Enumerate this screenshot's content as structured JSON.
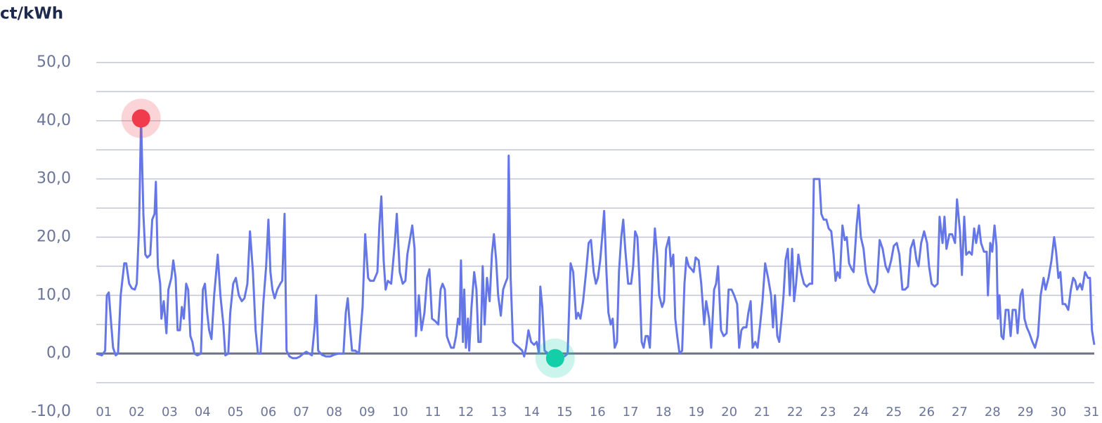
{
  "chart_data": {
    "type": "line",
    "title": "ct/kWh",
    "xlim": [
      0.77,
      31.09
    ],
    "ylim": [
      -10,
      50
    ],
    "xticks": [
      {
        "value": 1,
        "label": "01"
      },
      {
        "value": 2,
        "label": "02"
      },
      {
        "value": 3,
        "label": "03"
      },
      {
        "value": 4,
        "label": "04"
      },
      {
        "value": 5,
        "label": "05"
      },
      {
        "value": 6,
        "label": "06"
      },
      {
        "value": 7,
        "label": "07"
      },
      {
        "value": 8,
        "label": "08"
      },
      {
        "value": 9,
        "label": "09"
      },
      {
        "value": 10,
        "label": "10"
      },
      {
        "value": 11,
        "label": "11"
      },
      {
        "value": 12,
        "label": "12"
      },
      {
        "value": 13,
        "label": "13"
      },
      {
        "value": 14,
        "label": "14"
      },
      {
        "value": 15,
        "label": "15"
      },
      {
        "value": 16,
        "label": "16"
      },
      {
        "value": 17,
        "label": "17"
      },
      {
        "value": 18,
        "label": "18"
      },
      {
        "value": 19,
        "label": "19"
      },
      {
        "value": 20,
        "label": "20"
      },
      {
        "value": 21,
        "label": "21"
      },
      {
        "value": 22,
        "label": "22"
      },
      {
        "value": 23,
        "label": "23"
      },
      {
        "value": 24,
        "label": "24"
      },
      {
        "value": 25,
        "label": "25"
      },
      {
        "value": 26,
        "label": "26"
      },
      {
        "value": 27,
        "label": "27"
      },
      {
        "value": 28,
        "label": "28"
      },
      {
        "value": 29,
        "label": "29"
      },
      {
        "value": 30,
        "label": "30"
      },
      {
        "value": 31,
        "label": "31"
      }
    ],
    "yticks": [
      {
        "value": 50,
        "label": "50,0"
      },
      {
        "value": 40,
        "label": "40,0"
      },
      {
        "value": 30,
        "label": "30,0"
      },
      {
        "value": 20,
        "label": "20,0"
      },
      {
        "value": 10,
        "label": "10,0"
      },
      {
        "value": 0,
        "label": "0,0"
      },
      {
        "value": -10,
        "label": "-10,0"
      }
    ],
    "ygrid": [
      50,
      45,
      40,
      35,
      30,
      25,
      20,
      15,
      10,
      5,
      0,
      -5
    ],
    "grid": true,
    "series": [
      {
        "color": "#6577e6",
        "x": [
          0.77,
          0.94,
          1.04,
          1.09,
          1.15,
          1.21,
          1.28,
          1.36,
          1.43,
          1.51,
          1.62,
          1.68,
          1.77,
          1.85,
          1.94,
          2.0,
          2.07,
          2.13,
          2.2,
          2.26,
          2.32,
          2.41,
          2.47,
          2.54,
          2.58,
          2.64,
          2.71,
          2.75,
          2.82,
          2.9,
          2.96,
          3.05,
          3.11,
          3.18,
          3.24,
          3.31,
          3.37,
          3.43,
          3.5,
          3.56,
          3.63,
          3.69,
          3.75,
          3.84,
          3.95,
          4.01,
          4.07,
          4.14,
          4.2,
          4.27,
          4.35,
          4.46,
          4.54,
          4.63,
          4.69,
          4.78,
          4.84,
          4.93,
          5.01,
          5.1,
          5.19,
          5.27,
          5.36,
          5.44,
          5.53,
          5.61,
          5.68,
          5.76,
          5.85,
          5.93,
          6.0,
          6.06,
          6.12,
          6.19,
          6.27,
          6.36,
          6.42,
          6.49,
          6.55,
          6.64,
          6.74,
          6.85,
          6.96,
          7.06,
          7.15,
          7.24,
          7.32,
          7.41,
          7.45,
          7.51,
          7.62,
          7.75,
          7.88,
          8.0,
          8.13,
          8.28,
          8.35,
          8.41,
          8.47,
          8.54,
          8.64,
          8.75,
          8.86,
          8.94,
          9.03,
          9.09,
          9.2,
          9.31,
          9.37,
          9.43,
          9.5,
          9.56,
          9.63,
          9.73,
          9.84,
          9.9,
          9.99,
          10.08,
          10.16,
          10.22,
          10.31,
          10.37,
          10.44,
          10.48,
          10.57,
          10.65,
          10.74,
          10.82,
          10.89,
          10.97,
          11.08,
          11.16,
          11.23,
          11.29,
          11.36,
          11.42,
          11.48,
          11.55,
          11.63,
          11.7,
          11.76,
          11.81,
          11.85,
          11.91,
          11.95,
          12.0,
          12.06,
          12.1,
          12.17,
          12.25,
          12.32,
          12.38,
          12.45,
          12.51,
          12.57,
          12.64,
          12.72,
          12.79,
          12.85,
          12.92,
          12.98,
          13.06,
          13.13,
          13.19,
          13.26,
          13.3,
          13.36,
          13.43,
          13.51,
          13.62,
          13.71,
          13.77,
          13.83,
          13.9,
          13.98,
          14.07,
          14.15,
          14.22,
          14.26,
          14.32,
          14.39,
          14.5,
          14.6,
          14.71,
          14.84,
          14.99,
          15.09,
          15.18,
          15.26,
          15.35,
          15.41,
          15.48,
          15.56,
          15.65,
          15.73,
          15.8,
          15.88,
          15.95,
          16.01,
          16.08,
          16.14,
          16.2,
          16.27,
          16.33,
          16.4,
          16.46,
          16.52,
          16.59,
          16.65,
          16.72,
          16.78,
          16.84,
          16.93,
          17.02,
          17.08,
          17.14,
          17.21,
          17.27,
          17.34,
          17.4,
          17.46,
          17.53,
          17.59,
          17.68,
          17.74,
          17.81,
          17.87,
          17.96,
          18.02,
          18.08,
          18.17,
          18.23,
          18.3,
          18.36,
          18.42,
          18.49,
          18.57,
          18.64,
          18.7,
          18.77,
          18.85,
          18.92,
          18.98,
          19.07,
          19.15,
          19.24,
          19.3,
          19.39,
          19.45,
          19.54,
          19.6,
          19.66,
          19.75,
          19.83,
          19.92,
          19.98,
          20.07,
          20.15,
          20.24,
          20.3,
          20.37,
          20.43,
          20.52,
          20.58,
          20.65,
          20.71,
          20.79,
          20.86,
          20.94,
          21.01,
          21.09,
          21.18,
          21.27,
          21.33,
          21.39,
          21.46,
          21.52,
          21.59,
          21.65,
          21.71,
          21.78,
          21.84,
          21.91,
          21.97,
          22.03,
          22.1,
          22.18,
          22.27,
          22.35,
          22.44,
          22.52,
          22.57,
          22.67,
          22.74,
          22.8,
          22.87,
          22.95,
          23.02,
          23.1,
          23.17,
          23.23,
          23.29,
          23.36,
          23.44,
          23.51,
          23.57,
          23.64,
          23.72,
          23.78,
          23.87,
          23.93,
          24.0,
          24.08,
          24.15,
          24.23,
          24.32,
          24.4,
          24.49,
          24.57,
          24.66,
          24.75,
          24.83,
          24.92,
          25.0,
          25.09,
          25.17,
          25.26,
          25.34,
          25.43,
          25.51,
          25.6,
          25.69,
          25.75,
          25.83,
          25.92,
          26.01,
          26.07,
          26.15,
          26.24,
          26.33,
          26.39,
          26.48,
          26.54,
          26.6,
          26.69,
          26.77,
          26.86,
          26.92,
          27.01,
          27.07,
          27.14,
          27.2,
          27.29,
          27.37,
          27.44,
          27.5,
          27.59,
          27.65,
          27.74,
          27.82,
          27.86,
          27.93,
          27.99,
          28.06,
          28.12,
          28.16,
          28.21,
          28.27,
          28.33,
          28.4,
          28.48,
          28.55,
          28.61,
          28.7,
          28.76,
          28.85,
          28.91,
          28.97,
          29.04,
          29.12,
          29.21,
          29.29,
          29.38,
          29.46,
          29.55,
          29.61,
          29.7,
          29.79,
          29.87,
          29.93,
          30.0,
          30.06,
          30.13,
          30.21,
          30.3,
          30.38,
          30.45,
          30.51,
          30.57,
          30.66,
          30.72,
          30.81,
          30.9,
          30.96,
          31.02,
          31.09
        ],
        "values": [
          0,
          -0.3,
          0.5,
          10,
          10.5,
          6,
          1,
          -0.3,
          0,
          10,
          15.5,
          15.5,
          12,
          11.2,
          11,
          12,
          22,
          40.4,
          24,
          17,
          16.5,
          17,
          23,
          24,
          29.5,
          15,
          12,
          6,
          9,
          3.5,
          11,
          13,
          16,
          13,
          4,
          4,
          8,
          6,
          12,
          11,
          3,
          2,
          0,
          -0.3,
          0,
          11,
          12,
          7,
          4,
          2.5,
          10,
          17,
          10,
          5,
          -0.3,
          0,
          7,
          12,
          13,
          10,
          9,
          9.5,
          12,
          21,
          14,
          4,
          0,
          0,
          9,
          15,
          23,
          14,
          11,
          9.5,
          11,
          12,
          12.5,
          24,
          0.5,
          -0.5,
          -0.8,
          -0.8,
          -0.5,
          0,
          0.3,
          0,
          -0.3,
          5,
          10,
          0.5,
          -0.2,
          -0.5,
          -0.5,
          -0.2,
          0,
          0,
          7,
          9.5,
          5,
          0.5,
          0.5,
          0,
          8,
          20.5,
          13,
          12.5,
          12.5,
          14,
          22,
          27,
          16,
          11,
          12.5,
          12,
          19,
          24,
          14,
          12,
          12.5,
          17,
          20,
          22,
          18,
          3,
          10,
          4,
          7,
          13,
          14.5,
          6,
          5.5,
          5,
          11,
          12,
          11,
          3,
          2,
          1,
          1,
          3,
          6,
          5,
          16,
          2,
          11,
          1,
          6,
          0.5,
          8,
          14,
          11,
          2,
          2,
          15,
          5,
          13,
          9,
          17,
          20.5,
          16,
          10,
          6.5,
          11,
          12,
          13,
          34,
          13,
          2,
          1.5,
          1,
          0.5,
          -0.5,
          1,
          4,
          2,
          1.5,
          2,
          0,
          11.5,
          8,
          0.5,
          0,
          -0.8,
          -0.8,
          -0.5,
          -0.5,
          0,
          15.5,
          14,
          6,
          7,
          6,
          9,
          14,
          19,
          19.5,
          14,
          12,
          13,
          16,
          20,
          24.5,
          14,
          7,
          5,
          6,
          1,
          2,
          14,
          20,
          23,
          18,
          12,
          12,
          15,
          21,
          20,
          13,
          2,
          1,
          3,
          3,
          1,
          15,
          21.5,
          17,
          10,
          8,
          9,
          18,
          20,
          15,
          17,
          6,
          3,
          0,
          0.5,
          12,
          16.5,
          15,
          14.5,
          14,
          16.5,
          16,
          12,
          5,
          9,
          6,
          1,
          11,
          12,
          15,
          4,
          3,
          3.5,
          11,
          11,
          10,
          8.5,
          1,
          4,
          4.5,
          4.5,
          7,
          9,
          1,
          2,
          1,
          5,
          9,
          15.5,
          13,
          10,
          4.5,
          10,
          3,
          2,
          6,
          10,
          16,
          18,
          10,
          18,
          9,
          12,
          17,
          14,
          12,
          11.5,
          12,
          12,
          30,
          30,
          30,
          24,
          23,
          23,
          21.5,
          21,
          17,
          12.5,
          14,
          13,
          22,
          19.5,
          20,
          15.5,
          14.5,
          14,
          22,
          25.5,
          20,
          18,
          14,
          12,
          11,
          10.5,
          12,
          19.5,
          18,
          15,
          14,
          16,
          18.5,
          19,
          17,
          11,
          11,
          11.5,
          18,
          19.5,
          16,
          15,
          19,
          21,
          19,
          15,
          12,
          11.5,
          12,
          23.5,
          19,
          23.5,
          18,
          20.5,
          20.5,
          19,
          26.5,
          21,
          13.5,
          23.5,
          17,
          17.5,
          17,
          21.5,
          19,
          22,
          19,
          17.5,
          17.5,
          10,
          19,
          17.5,
          22,
          18.5,
          6,
          10,
          3,
          2.5,
          7.5,
          7.5,
          3,
          7.5,
          7.5,
          3.5,
          10,
          11,
          6,
          4.5,
          3.5,
          2,
          1,
          3,
          10,
          13,
          11,
          13,
          16,
          20,
          17.5,
          13,
          14,
          8.5,
          8.5,
          7.5,
          11,
          13,
          12.5,
          11,
          12,
          11,
          14,
          13,
          13,
          4,
          1.5
        ]
      }
    ],
    "markers": [
      {
        "x": 2.13,
        "y": 40.4,
        "color": "#ef3b4b"
      },
      {
        "x": 14.71,
        "y": -0.8,
        "color": "#12cfa9"
      }
    ]
  }
}
